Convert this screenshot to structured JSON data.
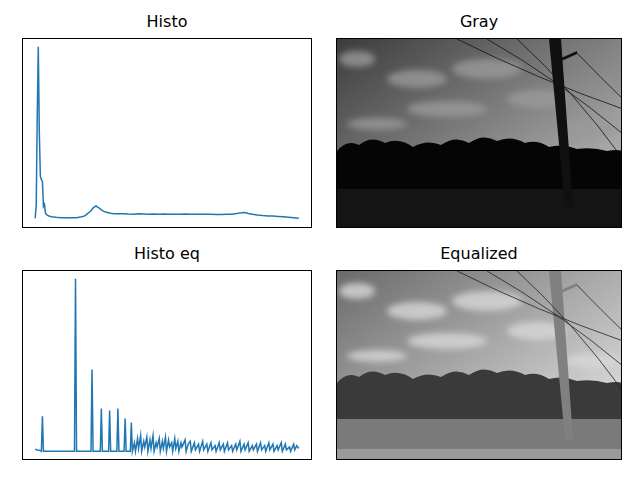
{
  "chart_data": [
    {
      "type": "line",
      "title": "Histo",
      "color": "#1f77b4",
      "tick_labels": false,
      "xlim": [
        -12.75,
        267.75
      ],
      "ylim": [
        -500,
        10500
      ],
      "xticks": [],
      "yticks": [],
      "x": [
        0,
        1,
        2,
        3,
        4,
        5,
        6,
        7,
        8,
        9,
        10,
        11,
        12,
        14,
        16,
        20,
        25,
        30,
        35,
        40,
        45,
        48,
        50,
        52,
        54,
        56,
        58,
        59,
        60,
        62,
        64,
        66,
        68,
        70,
        73,
        76,
        80,
        85,
        90,
        95,
        100,
        105,
        110,
        115,
        120,
        125,
        130,
        135,
        140,
        145,
        150,
        155,
        160,
        165,
        170,
        175,
        180,
        185,
        190,
        195,
        200,
        203,
        206,
        210,
        215,
        220,
        225,
        230,
        235,
        240,
        245,
        250,
        255
      ],
      "values": [
        60,
        800,
        6000,
        10000,
        5000,
        2500,
        2300,
        2200,
        750,
        870,
        350,
        300,
        230,
        180,
        150,
        120,
        100,
        90,
        90,
        100,
        150,
        200,
        300,
        400,
        500,
        650,
        750,
        780,
        720,
        650,
        550,
        480,
        430,
        400,
        350,
        330,
        320,
        330,
        310,
        300,
        320,
        310,
        300,
        310,
        300,
        310,
        300,
        290,
        300,
        310,
        290,
        300,
        290,
        300,
        290,
        280,
        280,
        290,
        300,
        340,
        390,
        400,
        340,
        290,
        250,
        220,
        200,
        190,
        170,
        150,
        120,
        90,
        60
      ]
    },
    {
      "type": "image",
      "title": "Gray"
    },
    {
      "type": "line",
      "title": "Histo eq",
      "color": "#1f77b4",
      "tick_labels": false,
      "xlim": [
        -12.75,
        267.75
      ],
      "ylim": [
        -600,
        12600
      ],
      "xticks": [],
      "yticks": [],
      "x": [
        0,
        2,
        4,
        6,
        7,
        8,
        38,
        39,
        40,
        54,
        55,
        56,
        63,
        64,
        65,
        71,
        72,
        73,
        79,
        80,
        81,
        86,
        87,
        88,
        92,
        93,
        94,
        96,
        97,
        99,
        100,
        102,
        103,
        105,
        106,
        108,
        109,
        111,
        112,
        114,
        115,
        117,
        118,
        120,
        121,
        123,
        124,
        126,
        127,
        129,
        130,
        132,
        133,
        135,
        136,
        138,
        139,
        141,
        142,
        145,
        146,
        148,
        150,
        151,
        154,
        155,
        158,
        159,
        162,
        163,
        166,
        167,
        170,
        171,
        174,
        175,
        178,
        179,
        182,
        183,
        186,
        187,
        190,
        191,
        194,
        195,
        198,
        199,
        202,
        203,
        206,
        207,
        210,
        211,
        214,
        215,
        218,
        219,
        222,
        223,
        226,
        227,
        230,
        231,
        234,
        235,
        238,
        239,
        242,
        243,
        246,
        247,
        250,
        251,
        253,
        255
      ],
      "values": [
        150,
        100,
        80,
        0,
        2430,
        0,
        0,
        12000,
        0,
        0,
        5690,
        0,
        0,
        2980,
        0,
        0,
        2840,
        0,
        0,
        2980,
        0,
        0,
        2290,
        0,
        0,
        2010,
        0,
        600,
        0,
        900,
        200,
        1100,
        0,
        700,
        300,
        1000,
        0,
        800,
        200,
        1100,
        0,
        600,
        300,
        900,
        0,
        700,
        200,
        1000,
        0,
        800,
        300,
        600,
        0,
        900,
        200,
        700,
        0,
        600,
        300,
        800,
        0,
        500,
        700,
        0,
        600,
        100,
        500,
        0,
        700,
        100,
        500,
        0,
        600,
        100,
        400,
        0,
        600,
        100,
        500,
        0,
        600,
        100,
        400,
        0,
        500,
        100,
        700,
        0,
        500,
        100,
        600,
        0,
        400,
        100,
        500,
        0,
        600,
        100,
        400,
        0,
        600,
        100,
        500,
        0,
        400,
        100,
        600,
        0,
        500,
        100,
        300,
        0,
        500,
        100,
        400,
        200
      ]
    },
    {
      "type": "image",
      "title": "Equalized"
    }
  ]
}
